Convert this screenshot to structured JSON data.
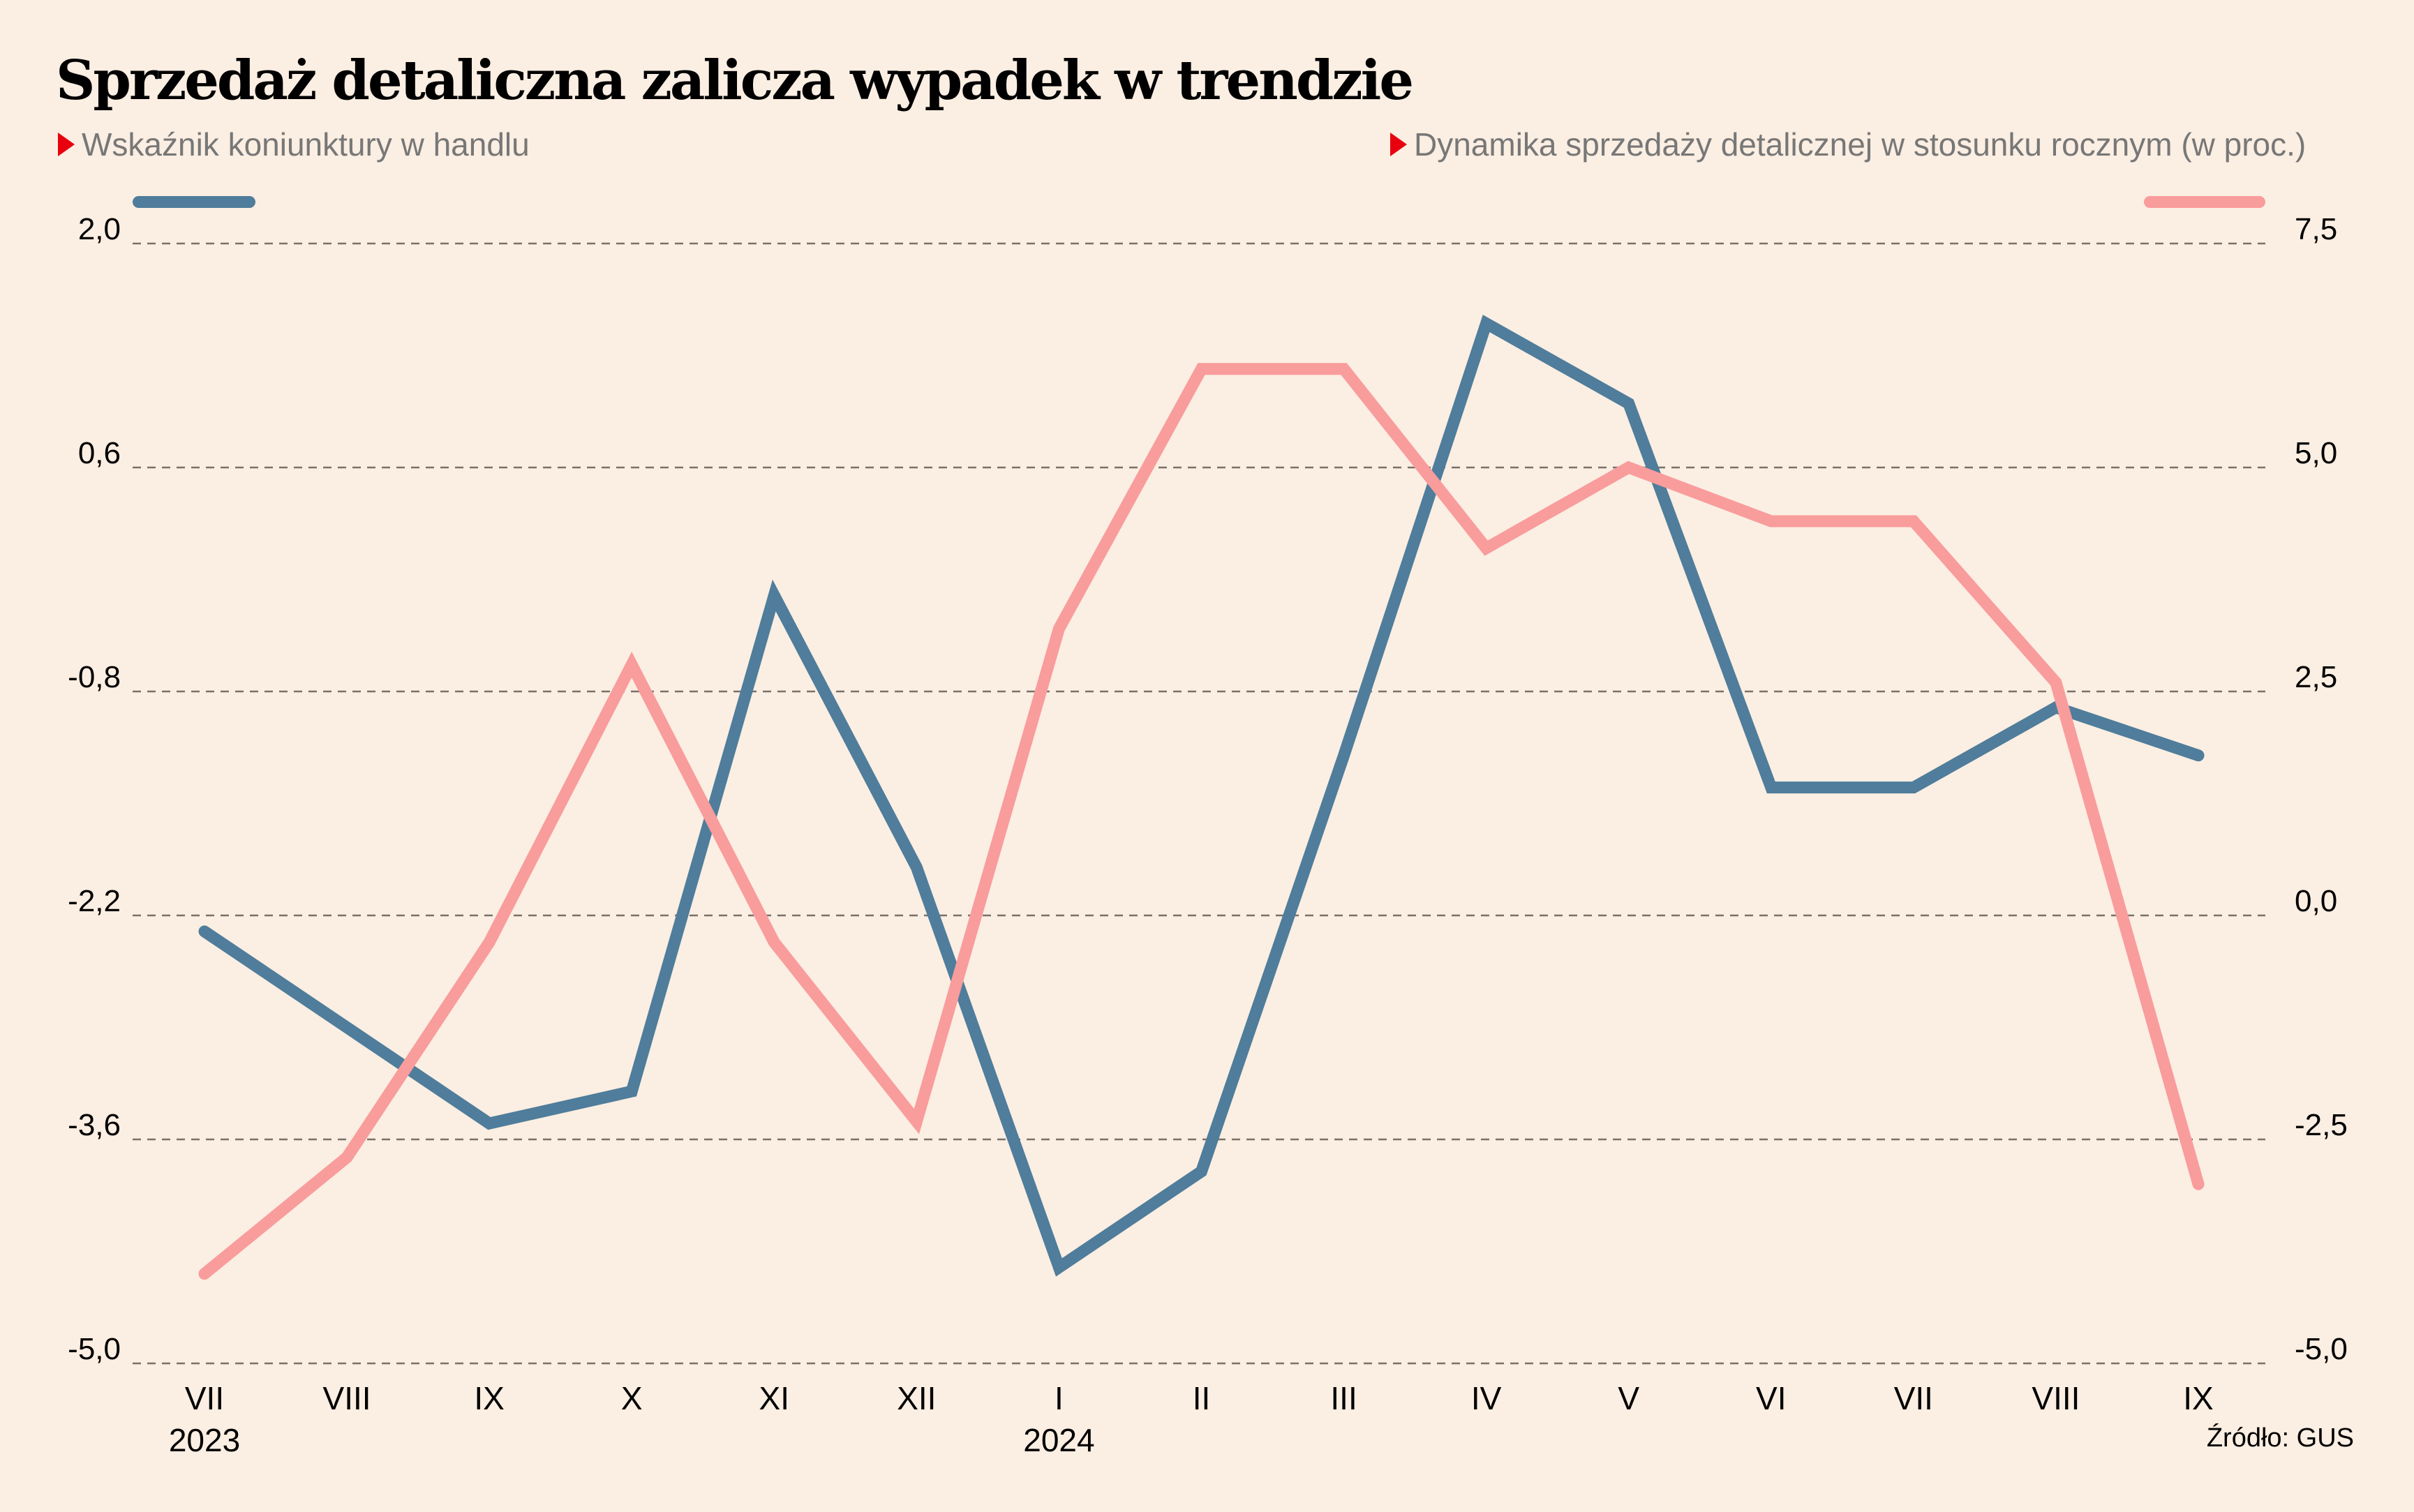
{
  "title": "Sprzedaż detaliczna zalicza wypadek w trendzie",
  "source": "Źródło: GUS",
  "colors": {
    "background": "#FBEEE2",
    "series_left": "#4F7D9B",
    "series_right": "#F99C9C",
    "marker": "#E8000E"
  },
  "chart_data": {
    "type": "line",
    "title": "Sprzedaż detaliczna zalicza wypadek w trendzie",
    "categories": [
      "VII",
      "VIII",
      "IX",
      "X",
      "XI",
      "XII",
      "I",
      "II",
      "III",
      "IV",
      "V",
      "VI",
      "VII",
      "VIII",
      "IX"
    ],
    "year_labels": [
      {
        "index": 0,
        "label": "2023"
      },
      {
        "index": 6,
        "label": "2024"
      }
    ],
    "series": [
      {
        "name": "Wskaźnik koniunktury w handlu",
        "axis": "left",
        "color": "#4F7D9B",
        "values": [
          -2.3,
          -2.9,
          -3.5,
          -3.3,
          -0.2,
          -1.9,
          -4.4,
          -3.8,
          -1.2,
          1.5,
          1.0,
          -1.4,
          -1.4,
          -0.9,
          -1.2
        ]
      },
      {
        "name": "Dynamika sprzedaży detalicznej w stosunku rocznym (w proc.)",
        "axis": "right",
        "color": "#F99C9C",
        "values": [
          -4.0,
          -2.7,
          -0.3,
          2.8,
          -0.3,
          -2.3,
          3.2,
          6.1,
          6.1,
          4.1,
          5.0,
          4.4,
          4.4,
          2.6,
          -3.0
        ]
      }
    ],
    "left_axis": {
      "ylim": [
        -5.0,
        2.0
      ],
      "ticks": [
        "2,0",
        "0,6",
        "-0,8",
        "-2,2",
        "-3,6",
        "-5,0"
      ],
      "tick_values": [
        2.0,
        0.6,
        -0.8,
        -2.2,
        -3.6,
        -5.0
      ]
    },
    "right_axis": {
      "ylim": [
        -5.0,
        7.5
      ],
      "ticks": [
        "7,5",
        "5,0",
        "2,5",
        "0,0",
        "-2,5",
        "-5,0"
      ],
      "tick_values": [
        7.5,
        5.0,
        2.5,
        0.0,
        -2.5,
        -5.0
      ]
    },
    "grid": true,
    "legend": "top"
  }
}
